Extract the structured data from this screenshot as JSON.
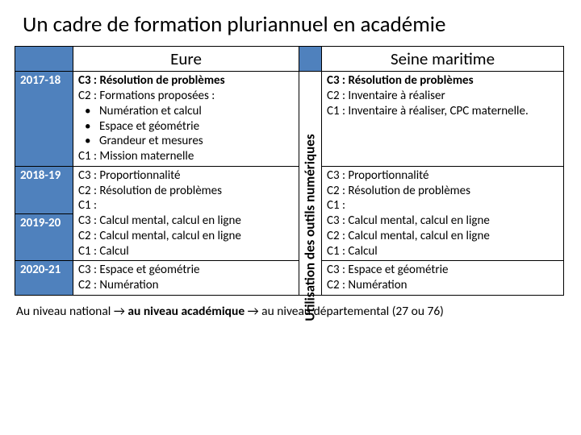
{
  "title": "Un cadre de formation pluriannuel en académie",
  "headers": {
    "eure": "Eure",
    "sm": "Seine maritime"
  },
  "years": {
    "y1": "2017-18",
    "y2": "2018-19",
    "y3": "2019-20",
    "y4": "2020-21"
  },
  "eure": {
    "r1": {
      "c3": "C3 : Résolution de problèmes",
      "c2": "C2 : Formations proposées :",
      "b1": "Numération et calcul",
      "b2": "Espace et géométrie",
      "b3": "Grandeur et mesures",
      "c1": "C1 : Mission maternelle"
    },
    "r2": {
      "c3": "C3 : Proportionnalité",
      "c2": "C2 : Résolution de problèmes",
      "c1": "C1 :"
    },
    "r3": {
      "c3": "C3 : Calcul mental, calcul en ligne",
      "c2": "C2 : Calcul mental, calcul en ligne",
      "c1": "C1 : Calcul"
    },
    "r4": {
      "c3": "C3 : Espace et géométrie",
      "c2": "C2 : Numération"
    }
  },
  "sm": {
    "r1": {
      "c3": "C3 : Résolution de problèmes",
      "c2": "C2 : Inventaire à réaliser",
      "c1": "C1 : Inventaire à réaliser, CPC maternelle."
    },
    "r2": {
      "c3": "C3 : Proportionnalité",
      "c2": "C2 : Résolution de problèmes",
      "c1": "C1 :"
    },
    "r3": {
      "c3": "C3 : Calcul mental, calcul en ligne",
      "c2": "C2 : Calcul mental, calcul en ligne",
      "c1": "C1 : Calcul"
    },
    "r4": {
      "c3": "C3 : Espace et géométrie",
      "c2": "C2 : Numération"
    }
  },
  "vertical": "Utilisation des outils numériques",
  "footer": {
    "a": "Au niveau national ",
    "arrow1": "→",
    "b": " au niveau académique ",
    "arrow2": "→",
    "c": " au niveau départemental (27 ou 76)"
  }
}
